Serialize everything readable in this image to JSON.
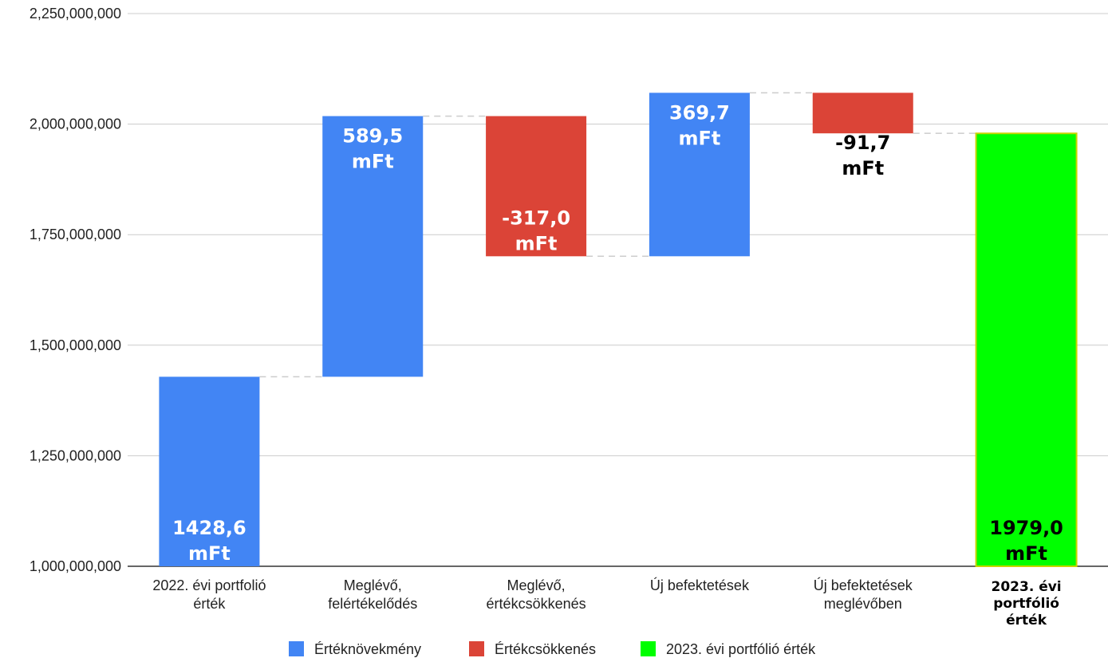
{
  "chart_data": {
    "type": "bar",
    "subtype": "waterfall",
    "title": "",
    "xlabel": "",
    "ylabel": "",
    "ylim": [
      1000000000,
      2250000000
    ],
    "yticks": [
      "1,000,000,000",
      "1,250,000,000",
      "1,500,000,000",
      "1,750,000,000",
      "2,000,000,000",
      "2,250,000,000"
    ],
    "ytick_values": [
      1000000000,
      1250000000,
      1500000000,
      1750000000,
      2000000000,
      2250000000
    ],
    "grid": true,
    "legend_position": "bottom",
    "colors": {
      "increase": "#4285f4",
      "decrease": "#db4437",
      "total": "#00ff00",
      "total_border": "#c8d400"
    },
    "legend": [
      {
        "key": "increase",
        "label": "Értéknövekmény"
      },
      {
        "key": "decrease",
        "label": "Értékcsökkenés"
      },
      {
        "key": "total",
        "label": "2023. évi portfólió érték"
      }
    ],
    "bars": [
      {
        "category": [
          "2022. évi portfolió",
          "érték"
        ],
        "bold": false,
        "kind": "increase",
        "start": 1000000000,
        "end": 1428600000,
        "label": [
          "1428,6",
          "mFt"
        ],
        "label_color": "#ffffff",
        "label_pos": "bottom"
      },
      {
        "category": [
          "Meglévő,",
          "felértékelődés"
        ],
        "bold": false,
        "kind": "increase",
        "start": 1428600000,
        "end": 2018100000,
        "label": [
          "589,5",
          "mFt"
        ],
        "label_color": "#ffffff",
        "label_pos": "top"
      },
      {
        "category": [
          "Meglévő,",
          "értékcsökkenés"
        ],
        "bold": false,
        "kind": "decrease",
        "start": 2018100000,
        "end": 1701100000,
        "label": [
          "-317,0",
          "mFt"
        ],
        "label_color": "#ffffff",
        "label_pos": "bottom"
      },
      {
        "category": [
          "Új befektetések"
        ],
        "bold": false,
        "kind": "increase",
        "start": 1701100000,
        "end": 2070800000,
        "label": [
          "369,7",
          "mFt"
        ],
        "label_color": "#ffffff",
        "label_pos": "top"
      },
      {
        "category": [
          "Új befektetések",
          "meglévőben"
        ],
        "bold": false,
        "kind": "decrease",
        "start": 2070800000,
        "end": 1979100000,
        "label": [
          "-91,7",
          "mFt"
        ],
        "label_color": "#000000",
        "label_pos": "below"
      },
      {
        "category": [
          "2023. évi",
          "portfólió",
          "érték"
        ],
        "bold": true,
        "kind": "total",
        "start": 1000000000,
        "end": 1979000000,
        "label": [
          "1979,0",
          "mFt"
        ],
        "label_color": "#000000",
        "label_pos": "bottom"
      }
    ]
  }
}
